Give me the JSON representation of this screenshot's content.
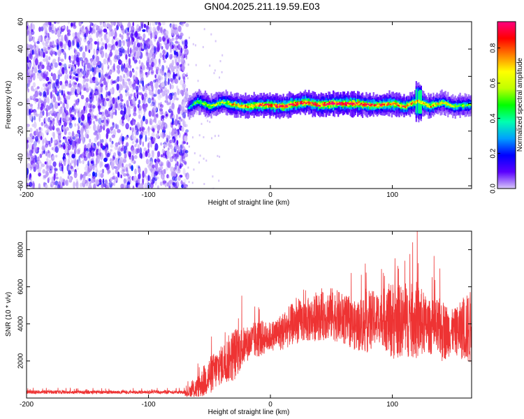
{
  "title": "GN04.2025.211.19.59.E03",
  "chart_data": [
    {
      "type": "heatmap",
      "xlabel": "Height of straight line (km)",
      "ylabel": "Frequency (Hz)",
      "xlim": [
        -200,
        165
      ],
      "ylim": [
        -62,
        60
      ],
      "xticks": [
        -200,
        -100,
        0,
        100
      ],
      "yticks": [
        -60,
        -40,
        -20,
        0,
        20,
        40,
        60
      ],
      "colorbar": {
        "label": "Normalized spectral amplitude",
        "range": [
          0,
          0.95
        ],
        "ticks": [
          0.0,
          0.2,
          0.4,
          0.6,
          0.8
        ],
        "tick_labels": [
          "0.0",
          "0.2",
          "0.4",
          "0.6",
          "0.8"
        ],
        "colors": [
          "#d8c8f8",
          "#5a00ff",
          "#0000ff",
          "#00a0ff",
          "#00ffb0",
          "#00ff00",
          "#c0ff00",
          "#ffff00",
          "#ff8000",
          "#ff0000",
          "#ff0080"
        ]
      },
      "noise_region_x": [
        -200,
        -68
      ],
      "signal_ridge": {
        "x": [
          -68,
          -60,
          -50,
          -40,
          -30,
          -20,
          -10,
          0,
          10,
          20,
          30,
          40,
          50,
          60,
          70,
          80,
          90,
          100,
          110,
          120,
          130,
          140,
          150,
          160,
          165
        ],
        "freq": [
          -3,
          2,
          -2,
          1,
          -1,
          -2,
          -1,
          -1,
          -2,
          0,
          1,
          -1,
          0,
          0,
          0,
          -1,
          -1,
          0,
          -2,
          2,
          -2,
          1,
          -2,
          -1,
          -1
        ],
        "peak_amplitude": [
          0.3,
          0.5,
          0.55,
          0.6,
          0.7,
          0.75,
          0.8,
          0.85,
          0.9,
          0.9,
          0.85,
          0.9,
          0.95,
          0.95,
          0.9,
          0.85,
          0.8,
          0.8,
          0.75,
          0.7,
          0.7,
          0.6,
          0.55,
          0.5,
          0.5
        ]
      }
    },
    {
      "type": "line",
      "xlabel": "Height of straight line (km)",
      "ylabel": "SNR (10 * v/v)",
      "xlim": [
        -200,
        165
      ],
      "ylim": [
        0,
        9000
      ],
      "xticks": [
        -200,
        -100,
        0,
        100
      ],
      "yticks": [
        2000,
        4000,
        6000,
        8000
      ],
      "color": "#ee3333",
      "envelope": {
        "x": [
          -200,
          -150,
          -100,
          -70,
          -60,
          -50,
          -40,
          -30,
          -20,
          -10,
          0,
          10,
          20,
          30,
          40,
          50,
          60,
          70,
          80,
          90,
          100,
          110,
          120,
          130,
          140,
          150,
          160,
          165
        ],
        "mean": [
          250,
          250,
          250,
          250,
          600,
          1300,
          1900,
          2500,
          3000,
          3300,
          3400,
          3700,
          4200,
          4300,
          4500,
          4700,
          4400,
          4000,
          4300,
          4500,
          4400,
          4300,
          4400,
          4000,
          3800,
          3700,
          3900,
          4000
        ],
        "max": [
          500,
          520,
          500,
          500,
          1700,
          3200,
          3800,
          5200,
          4700,
          5200,
          4800,
          5600,
          6300,
          6500,
          6800,
          7300,
          6900,
          6400,
          7400,
          7000,
          8300,
          7700,
          8300,
          6600,
          7000,
          5800,
          7200,
          7800
        ]
      }
    }
  ]
}
